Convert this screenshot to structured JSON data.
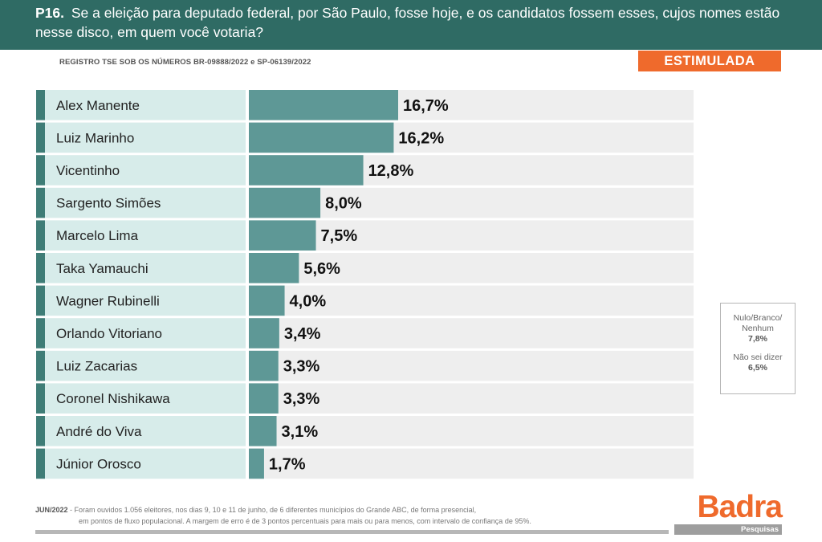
{
  "header": {
    "question_number": "P16.",
    "question_text": "Se a eleição para deputado federal, por São Paulo, fosse hoje, e os candidatos fossem esses, cujos nomes estão nesse disco, em quem você votaria?"
  },
  "registro": "REGISTRO TSE SOB OS NÚMEROS BR-09888/2022 e SP-06139/2022",
  "badge": "ESTIMULADA",
  "chart_data": {
    "type": "bar",
    "orientation": "horizontal",
    "categories": [
      "Alex Manente",
      "Luiz Marinho",
      "Vicentinho",
      "Sargento Simões",
      "Marcelo Lima",
      "Taka Yamauchi",
      "Wagner Rubinelli",
      "Orlando Vitoriano",
      "Luiz Zacarias",
      "Coronel Nishikawa",
      "André do Viva",
      "Júnior Orosco"
    ],
    "values": [
      16.7,
      16.2,
      12.8,
      8.0,
      7.5,
      5.6,
      4.0,
      3.4,
      3.3,
      3.3,
      3.1,
      1.7
    ],
    "value_labels": [
      "16,7%",
      "16,2%",
      "12,8%",
      "8,0%",
      "7,5%",
      "5,6%",
      "4,0%",
      "3,4%",
      "3,3%",
      "3,3%",
      "3,1%",
      "1,7%"
    ],
    "bar_color": "#5e9896",
    "label_bg_color": "#d7ecea",
    "track_color": "#eeeeee",
    "accent_color": "#3f7d77"
  },
  "legend_box": {
    "nulo_label": "Nulo/Branco/ Nenhum",
    "nulo_value": "7,8%",
    "naosei_label": "Não sei dizer",
    "naosei_value": "6,5%"
  },
  "footer": {
    "date": "JUN/2022",
    "line1": "- Foram ouvidos 1.056 eleitores, nos dias 9, 10 e 11 de junho, de 6 diferentes municípios do Grande ABC, de forma presencial,",
    "line2": "em pontos de fluxo populacional. A margem de erro é de 3 pontos percentuais para mais ou para menos, com intervalo de confiança de 95%."
  },
  "logo": {
    "brand": "Badra",
    "sub": "Pesquisas"
  }
}
